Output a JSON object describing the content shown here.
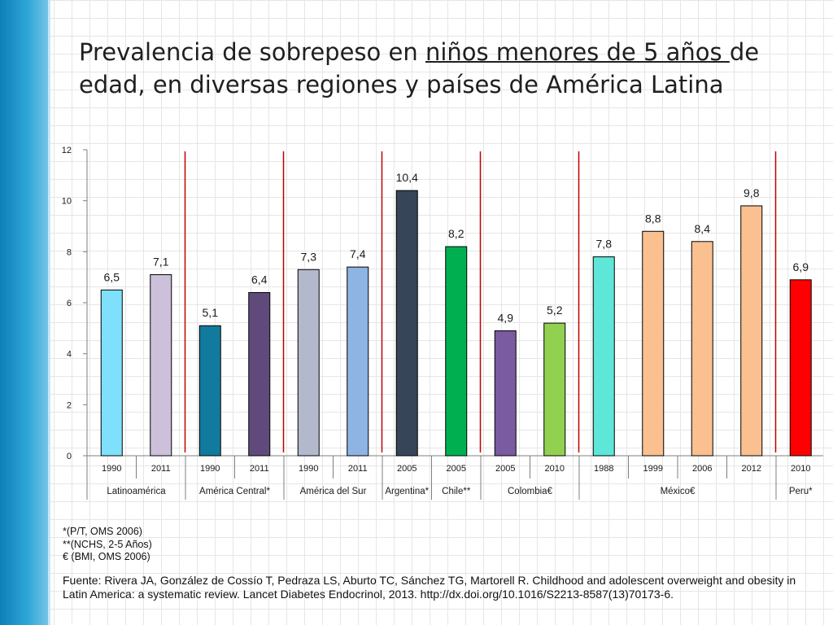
{
  "slide": {
    "title_part1": "Prevalencia de sobrepeso en ",
    "title_underlined": "niños menores de 5 años ",
    "title_part2": "de edad, en diversas regiones y países de América Latina"
  },
  "notes": [
    "*(P/T, OMS 2006)",
    "**(NCHS, 2-5 Años)",
    "€ (BMI, OMS 2006)"
  ],
  "source": "Fuente: Rivera JA, González de Cossío T, Pedraza LS, Aburto TC, Sánchez TG, Martorell R. Childhood and adolescent overweight and obesity in Latin America: a systematic review. Lancet Diabetes Endocrinol, 2013. http://dx.doi.org/10.1016/S2213-8587(13)70173-6.",
  "chart_data": {
    "type": "bar",
    "title": "",
    "xlabel": "",
    "ylabel": "",
    "ylim": [
      0,
      12
    ],
    "yticks": [
      0,
      2,
      4,
      6,
      8,
      10,
      12
    ],
    "categories": [
      "1990",
      "2011",
      "1990",
      "2011",
      "1990",
      "2011",
      "2005",
      "2005",
      "2005",
      "2010",
      "1988",
      "1999",
      "2006",
      "2012",
      "2010"
    ],
    "values": [
      6.5,
      7.1,
      5.1,
      6.4,
      7.3,
      7.4,
      10.4,
      8.2,
      4.9,
      5.2,
      7.8,
      8.8,
      8.4,
      9.8,
      6.9
    ],
    "value_labels": [
      "6,5",
      "7,1",
      "5,1",
      "6,4",
      "7,3",
      "7,4",
      "10,4",
      "8,2",
      "4,9",
      "5,2",
      "7,8",
      "8,8",
      "8,4",
      "9,8",
      "6,9"
    ],
    "colors": [
      "#7fe0fb",
      "#ccc0da",
      "#127a9c",
      "#604a7b",
      "#b3b8cc",
      "#8eb4e3",
      "#364557",
      "#00b050",
      "#7a5aa0",
      "#92d050",
      "#5ee6d8",
      "#fac090",
      "#fac090",
      "#fac090",
      "#ff0000"
    ],
    "groups": [
      {
        "label": "Latinoamérica",
        "start": 0,
        "count": 2
      },
      {
        "label": "América Central*",
        "start": 2,
        "count": 2
      },
      {
        "label": "América del Sur",
        "start": 4,
        "count": 2
      },
      {
        "label": "Argentina*",
        "start": 6,
        "count": 1
      },
      {
        "label": "Chile**",
        "start": 7,
        "count": 1
      },
      {
        "label": "Colombia€",
        "start": 8,
        "count": 2
      },
      {
        "label": "México€",
        "start": 10,
        "count": 4
      },
      {
        "label": "Peru*",
        "start": 14,
        "count": 1
      }
    ],
    "separators_after_index": [
      1,
      3,
      5,
      7,
      9,
      13
    ],
    "separator_color": "#c00000"
  }
}
